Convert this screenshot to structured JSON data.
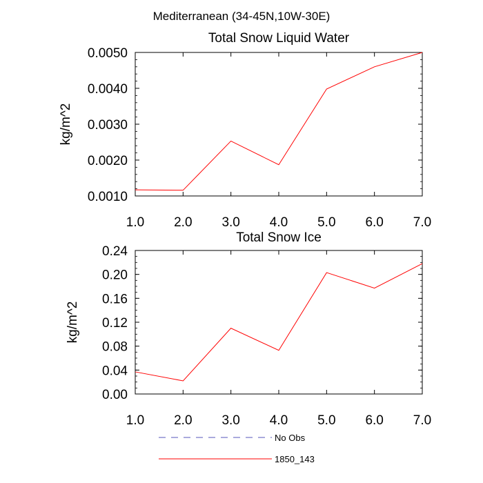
{
  "figure_title": "Mediterranean (34-45N,10W-30E)",
  "colors": {
    "model": "#ff0000",
    "obs": "#5555bb",
    "axes": "#000000"
  },
  "chart_data": [
    {
      "type": "line",
      "title": "Total Snow Liquid Water",
      "xlabel": "",
      "ylabel": "kg/m^2",
      "xlim": [
        1,
        7
      ],
      "ylim": [
        0.001,
        0.005
      ],
      "x": [
        1,
        2,
        3,
        4,
        5,
        6,
        7
      ],
      "x_ticks": [
        1,
        2,
        3,
        4,
        5,
        6,
        7
      ],
      "x_tick_labels": [
        "1.0",
        "2.0",
        "3.0",
        "4.0",
        "5.0",
        "6.0",
        "7.0"
      ],
      "y_ticks": [
        0.001,
        0.002,
        0.003,
        0.004,
        0.005
      ],
      "y_tick_labels": [
        "0.0010",
        "0.0020",
        "0.0030",
        "0.0040",
        "0.0050"
      ],
      "y_minor_step": 0.0002,
      "grid": false,
      "series": [
        {
          "name": "1850_143",
          "values": [
            0.00117,
            0.00116,
            0.00253,
            0.00187,
            0.00398,
            0.0046,
            0.005
          ]
        }
      ]
    },
    {
      "type": "line",
      "title": "Total Snow Ice",
      "xlabel": "",
      "ylabel": "kg/m^2",
      "xlim": [
        1,
        7
      ],
      "ylim": [
        0,
        0.24
      ],
      "x": [
        1,
        2,
        3,
        4,
        5,
        6,
        7
      ],
      "x_ticks": [
        1,
        2,
        3,
        4,
        5,
        6,
        7
      ],
      "x_tick_labels": [
        "1.0",
        "2.0",
        "3.0",
        "4.0",
        "5.0",
        "6.0",
        "7.0"
      ],
      "y_ticks": [
        0,
        0.04,
        0.08,
        0.12,
        0.16,
        0.2,
        0.24
      ],
      "y_tick_labels": [
        "0.00",
        "0.04",
        "0.08",
        "0.12",
        "0.16",
        "0.20",
        "0.24"
      ],
      "y_minor_step": 0.01,
      "grid": false,
      "series": [
        {
          "name": "1850_143",
          "values": [
            0.037,
            0.022,
            0.11,
            0.073,
            0.203,
            0.177,
            0.218
          ]
        }
      ]
    }
  ],
  "legend": {
    "placement": "bottom-center",
    "entries": [
      {
        "label": "No Obs",
        "style": "dashed",
        "color": "#5555bb"
      },
      {
        "label": "1850_143",
        "style": "solid",
        "color": "#ff0000"
      }
    ]
  }
}
